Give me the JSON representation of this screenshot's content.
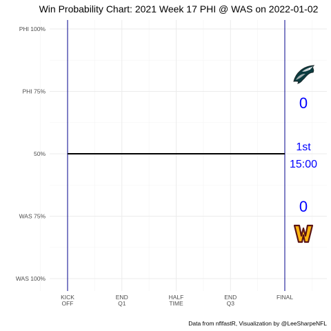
{
  "chart_data": {
    "type": "line",
    "title": "Win Probability Chart: 2021 Week 17 PHI @ WAS on 2022-01-02",
    "y_ticks": [
      "PHI 100%",
      "PHI 75%",
      "50%",
      "WAS 75%",
      "WAS 100%"
    ],
    "y_tick_values": [
      1.0,
      0.75,
      0.5,
      0.25,
      0.0
    ],
    "x_ticks": [
      {
        "line1": "KICK",
        "line2": "OFF",
        "value": 0
      },
      {
        "line1": "END",
        "line2": "Q1",
        "value": 15
      },
      {
        "line1": "HALF",
        "line2": "TIME",
        "value": 30
      },
      {
        "line1": "END",
        "line2": "Q3",
        "value": 45
      },
      {
        "line1": "FINAL",
        "line2": "",
        "value": 60
      }
    ],
    "xlim": [
      0,
      70
    ],
    "ylim": [
      0,
      1
    ],
    "series": [
      {
        "x": [
          0,
          60
        ],
        "y": [
          0.5,
          0.5
        ],
        "color": "#000000"
      }
    ],
    "home_score": "0",
    "away_score": "0",
    "quarter": "1st",
    "clock": "15:00",
    "score_color": "#0000ff",
    "kickoff_line_color": "#00008b",
    "final_line_color": "#00008b",
    "away_team_logo": "eagles-logo",
    "home_team_logo": "commanders-w-logo",
    "caption": "Data from nflfastR, Visualization by @LeeSharpeNFL",
    "grid": true
  }
}
